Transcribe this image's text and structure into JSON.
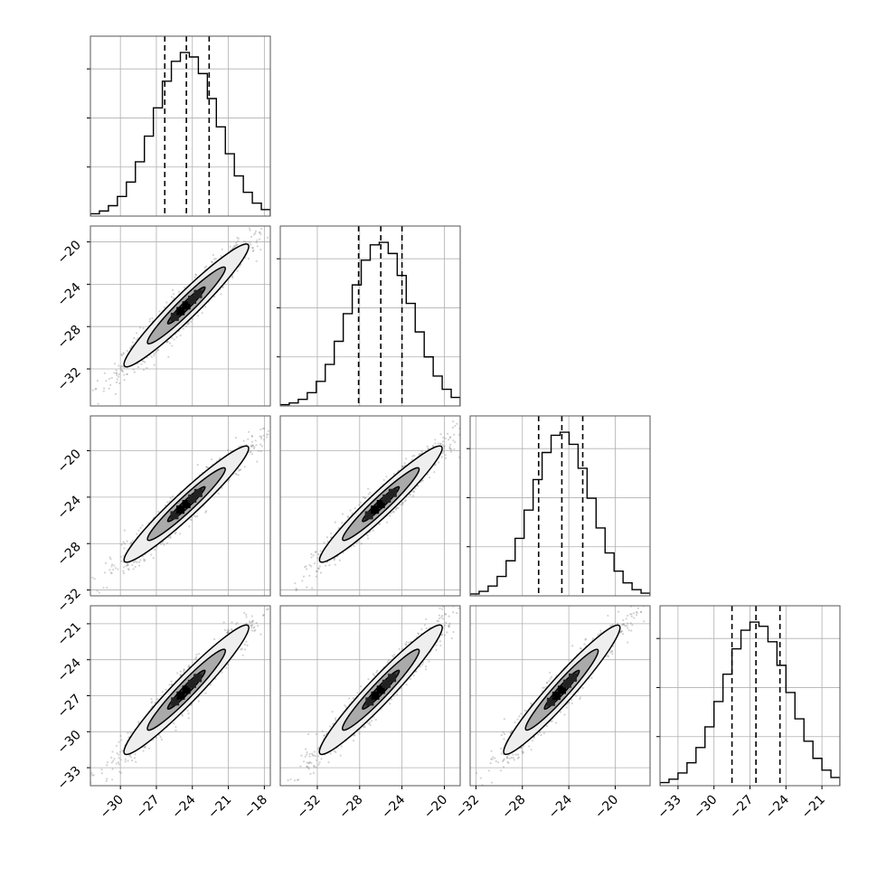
{
  "chart_data": {
    "type": "corner",
    "n_params": 4,
    "grid": true,
    "quantiles": [
      0.16,
      0.5,
      0.84
    ],
    "title": "",
    "params": [
      {
        "name": "",
        "range": [
          -32.5,
          -17.5
        ],
        "mean": -24.5,
        "std": 2.6,
        "q16": -26.3,
        "q50": -24.5,
        "q84": -22.6,
        "x_ticks": [
          -30,
          -27,
          -24,
          -21,
          -18
        ],
        "x_tick_labels": [
          "−30",
          "−27",
          "−24",
          "−21",
          "−18"
        ]
      },
      {
        "name": "",
        "range": [
          -35.5,
          -18.5
        ],
        "mean": -26.0,
        "std": 2.9,
        "q16": -28.1,
        "q50": -26.0,
        "q84": -24.0,
        "x_ticks": [
          -32,
          -28,
          -24,
          -20
        ],
        "x_tick_labels": [
          "−32",
          "−28",
          "−24",
          "−20"
        ],
        "y_ticks": [
          -32,
          -28,
          -24,
          -20
        ],
        "y_tick_labels": [
          "−32",
          "−28",
          "−24",
          "−20"
        ]
      },
      {
        "name": "",
        "range": [
          -32.5,
          -17.0
        ],
        "mean": -24.6,
        "std": 2.5,
        "q16": -26.6,
        "q50": -24.6,
        "q84": -22.8,
        "x_ticks": [
          -32,
          -28,
          -24,
          -20
        ],
        "x_tick_labels": [
          "−32",
          "−28",
          "−24",
          "−20"
        ],
        "y_ticks": [
          -32,
          -28,
          -24,
          -20
        ],
        "y_tick_labels": [
          "−32",
          "−28",
          "−24",
          "−20"
        ]
      },
      {
        "name": "",
        "range": [
          -34.5,
          -19.5
        ],
        "mean": -26.5,
        "std": 2.7,
        "q16": -28.5,
        "q50": -26.5,
        "q84": -24.5,
        "x_ticks": [
          -33,
          -30,
          -27,
          -24,
          -21
        ],
        "x_tick_labels": [
          "−33",
          "−30",
          "−27",
          "−24",
          "−21"
        ],
        "y_ticks": [
          -33,
          -30,
          -27,
          -24,
          -21
        ],
        "y_tick_labels": [
          "−33",
          "−30",
          "−27",
          "−24",
          "−21"
        ]
      }
    ],
    "correlation": 0.96,
    "histogram_bins": 20,
    "colors": {
      "line": "#000000",
      "scatter": "#808080",
      "grid": "#b0b0b0",
      "fill_light": "#eeeeee",
      "fill_mid": "#aaaaaa",
      "fill_dark": "#000000"
    }
  }
}
